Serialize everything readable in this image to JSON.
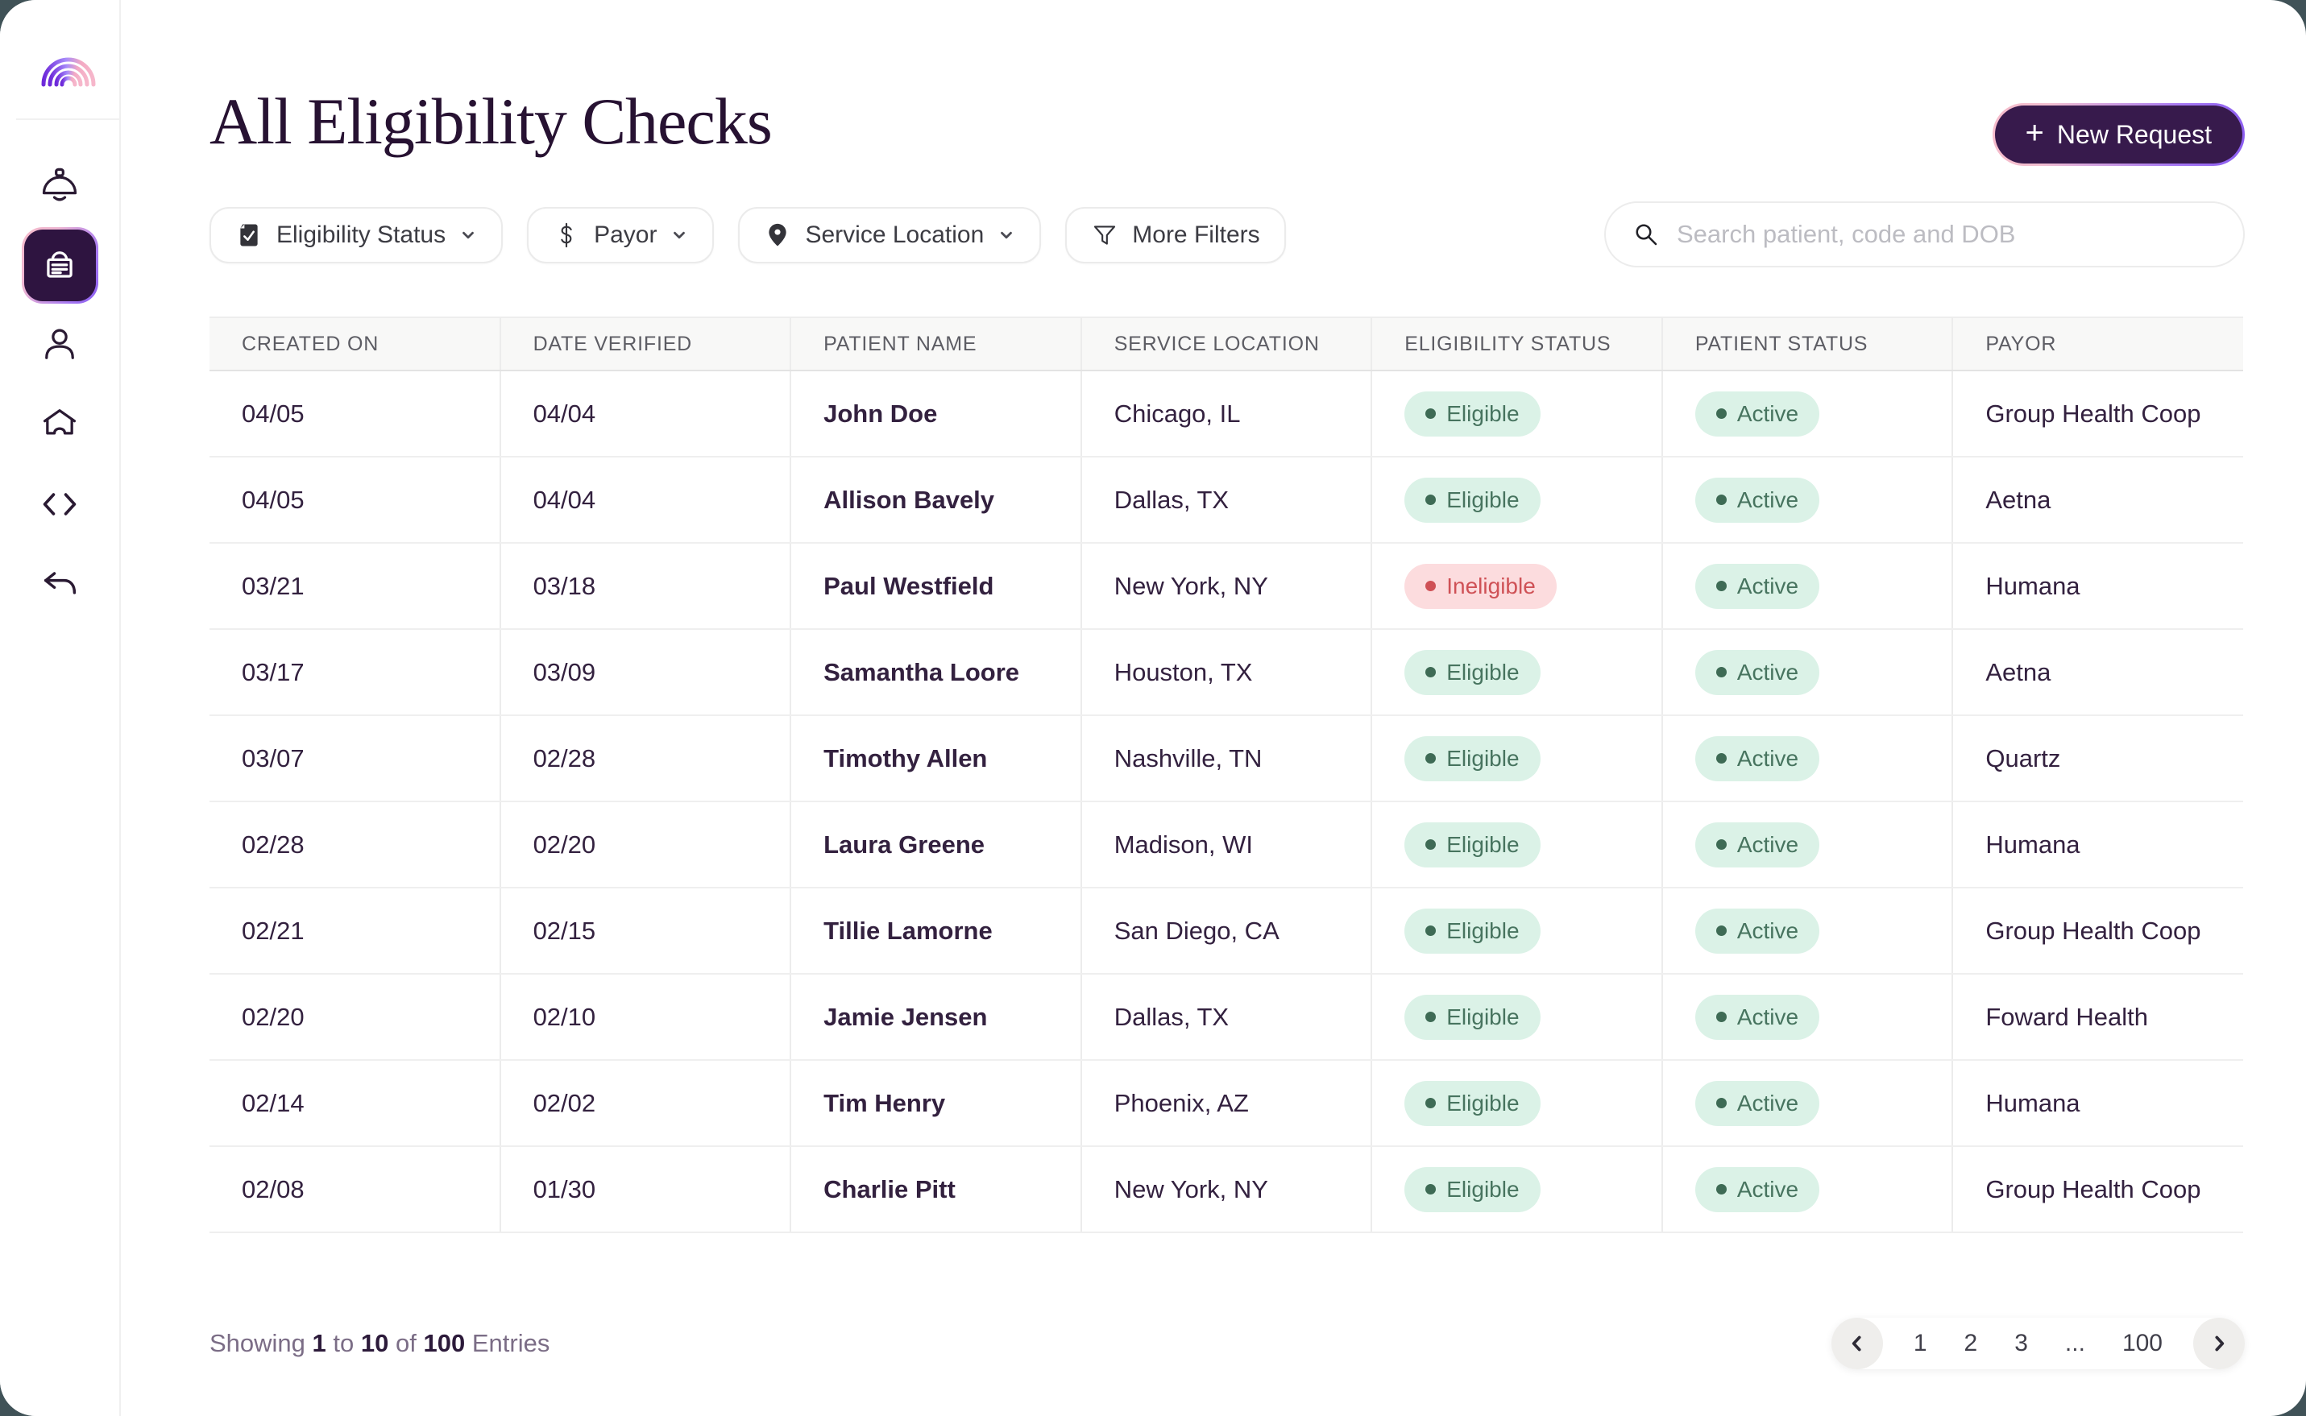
{
  "app": {
    "window_title": "All Eligibility Checks",
    "colors": {
      "outer_background": "#405257",
      "accent_dark_purple": "#371a4c",
      "active_tile_purple": "#2e1440",
      "gradient_pink": "#f6bccb",
      "gradient_purple": "#8a5cf0",
      "badge_green_bg": "#dbf2e7",
      "badge_green_text": "#47745f",
      "badge_red_bg": "#fcdcde",
      "badge_red_text": "#cf5156"
    }
  },
  "sidebar": {
    "logo_icon": "rainbow-logo-icon",
    "items": [
      {
        "name": "notifications",
        "icon": "bell-icon",
        "active": false
      },
      {
        "name": "eligibility-checks",
        "icon": "card-icon",
        "active": true
      },
      {
        "name": "patients",
        "icon": "person-icon",
        "active": false
      },
      {
        "name": "home",
        "icon": "home-icon",
        "active": false
      },
      {
        "name": "developer",
        "icon": "code-icon",
        "active": false
      },
      {
        "name": "back",
        "icon": "back-arrow-icon",
        "active": false
      }
    ]
  },
  "header": {
    "title": "All Eligibility Checks",
    "new_request": {
      "plus": "+",
      "label": "New Request"
    }
  },
  "filters": [
    {
      "label": "Eligibility Status",
      "icon": "task-check-icon",
      "has_chevron": true
    },
    {
      "label": "Payor",
      "icon": "dollar-icon",
      "has_chevron": true
    },
    {
      "label": "Service Location",
      "icon": "map-pin-icon",
      "has_chevron": true
    },
    {
      "label": "More Filters",
      "icon": "funnel-icon",
      "has_chevron": false
    }
  ],
  "search": {
    "placeholder": "Search patient, code and DOB",
    "value": "",
    "icon": "search-icon"
  },
  "table": {
    "columns": [
      "CREATED ON",
      "DATE VERIFIED",
      "PATIENT NAME",
      "SERVICE LOCATION",
      "ELIGIBILITY STATUS",
      "PATIENT STATUS",
      "PAYOR"
    ],
    "rows": [
      {
        "created_on": "04/05",
        "date_verified": "04/04",
        "patient_name": "John Doe",
        "service_location": "Chicago, IL",
        "eligibility_status": "Eligible",
        "patient_status": "Active",
        "payor": "Group Health Coop"
      },
      {
        "created_on": "04/05",
        "date_verified": "04/04",
        "patient_name": "Allison Bavely",
        "service_location": "Dallas, TX",
        "eligibility_status": "Eligible",
        "patient_status": "Active",
        "payor": "Aetna"
      },
      {
        "created_on": "03/21",
        "date_verified": "03/18",
        "patient_name": "Paul Westfield",
        "service_location": "New York, NY",
        "eligibility_status": "Ineligible",
        "patient_status": "Active",
        "payor": "Humana"
      },
      {
        "created_on": "03/17",
        "date_verified": "03/09",
        "patient_name": "Samantha Loore",
        "service_location": "Houston, TX",
        "eligibility_status": "Eligible",
        "patient_status": "Active",
        "payor": "Aetna"
      },
      {
        "created_on": "03/07",
        "date_verified": "02/28",
        "patient_name": "Timothy Allen",
        "service_location": "Nashville, TN",
        "eligibility_status": "Eligible",
        "patient_status": "Active",
        "payor": "Quartz"
      },
      {
        "created_on": "02/28",
        "date_verified": "02/20",
        "patient_name": "Laura Greene",
        "service_location": "Madison, WI",
        "eligibility_status": "Eligible",
        "patient_status": "Active",
        "payor": "Humana"
      },
      {
        "created_on": "02/21",
        "date_verified": "02/15",
        "patient_name": "Tillie Lamorne",
        "service_location": "San Diego, CA",
        "eligibility_status": "Eligible",
        "patient_status": "Active",
        "payor": "Group Health Coop"
      },
      {
        "created_on": "02/20",
        "date_verified": "02/10",
        "patient_name": "Jamie Jensen",
        "service_location": "Dallas, TX",
        "eligibility_status": "Eligible",
        "patient_status": "Active",
        "payor": "Foward Health"
      },
      {
        "created_on": "02/14",
        "date_verified": "02/02",
        "patient_name": "Tim Henry",
        "service_location": "Phoenix, AZ",
        "eligibility_status": "Eligible",
        "patient_status": "Active",
        "payor": "Humana"
      },
      {
        "created_on": "02/08",
        "date_verified": "01/30",
        "patient_name": "Charlie Pitt",
        "service_location": "New York, NY",
        "eligibility_status": "Eligible",
        "patient_status": "Active",
        "payor": "Group Health Coop"
      }
    ]
  },
  "footer": {
    "showing_word": "Showing",
    "from": "1",
    "to_word": "to",
    "to": "10",
    "of_word": "of",
    "total": "100",
    "entries_word": "Entries",
    "pages": [
      "1",
      "2",
      "3",
      "...",
      "100"
    ],
    "prev_icon": "chevron-left-icon",
    "next_icon": "chevron-right-icon"
  }
}
